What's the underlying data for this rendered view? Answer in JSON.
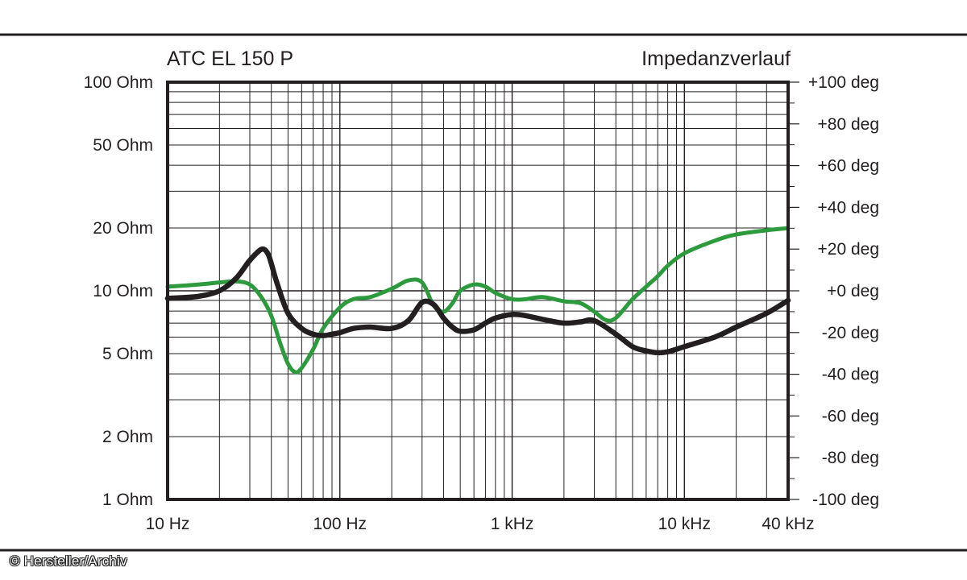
{
  "credit": "© Hersteller/Archiv",
  "colors": {
    "impedance": "#231f20",
    "phase": "#2e9a3e",
    "grid": "#000000",
    "background": "#ffffff"
  },
  "chart_data": {
    "type": "line",
    "title": "ATC EL 150 P",
    "subtitle": "Impedanzverlauf",
    "x_scale": "log",
    "xlim": [
      10,
      40000
    ],
    "x_ticks": [
      {
        "value": 10,
        "label": "10 Hz"
      },
      {
        "value": 100,
        "label": "100 Hz"
      },
      {
        "value": 1000,
        "label": "1 kHz"
      },
      {
        "value": 10000,
        "label": "10 kHz"
      },
      {
        "value": 40000,
        "label": "40 kHz"
      }
    ],
    "y_left": {
      "scale": "log",
      "range": [
        1,
        100
      ],
      "ticks": [
        {
          "value": 100,
          "label": "100 Ohm"
        },
        {
          "value": 50,
          "label": "50 Ohm"
        },
        {
          "value": 20,
          "label": "20 Ohm"
        },
        {
          "value": 10,
          "label": "10 Ohm"
        },
        {
          "value": 5,
          "label": "5 Ohm"
        },
        {
          "value": 2,
          "label": "2 Ohm"
        },
        {
          "value": 1,
          "label": "1 Ohm"
        }
      ]
    },
    "y_right": {
      "scale": "linear",
      "range": [
        -100,
        100
      ],
      "ticks": [
        {
          "value": 100,
          "label": "+100 deg"
        },
        {
          "value": 80,
          "label": "+80 deg"
        },
        {
          "value": 60,
          "label": "+60 deg"
        },
        {
          "value": 40,
          "label": "+40 deg"
        },
        {
          "value": 20,
          "label": "+20 deg"
        },
        {
          "value": 0,
          "label": "+0 deg"
        },
        {
          "value": -20,
          "label": "-20 deg"
        },
        {
          "value": -40,
          "label": "-40 deg"
        },
        {
          "value": -60,
          "label": "-60 deg"
        },
        {
          "value": -80,
          "label": "-80 deg"
        },
        {
          "value": -100,
          "label": "-100 deg"
        }
      ]
    },
    "grid": true,
    "series": [
      {
        "key": "impedance",
        "axis": "left",
        "color": "#231f20",
        "x": [
          10,
          15,
          20,
          25,
          30,
          35,
          38,
          40,
          43,
          50,
          60,
          70,
          80,
          90,
          100,
          120,
          150,
          200,
          250,
          300,
          350,
          400,
          450,
          500,
          600,
          700,
          800,
          1000,
          1200,
          1500,
          2000,
          2500,
          3000,
          4000,
          5000,
          6000,
          7000,
          8000,
          10000,
          15000,
          20000,
          30000,
          40000
        ],
        "y": [
          9.2,
          9.4,
          10.0,
          11.5,
          14.0,
          15.8,
          15.2,
          13.5,
          11.0,
          7.8,
          6.6,
          6.2,
          6.1,
          6.2,
          6.3,
          6.6,
          6.7,
          6.6,
          7.2,
          8.8,
          8.6,
          7.4,
          6.7,
          6.4,
          6.5,
          7.0,
          7.4,
          7.7,
          7.6,
          7.3,
          7.0,
          7.1,
          7.2,
          6.2,
          5.4,
          5.15,
          5.05,
          5.1,
          5.4,
          6.0,
          6.7,
          7.8,
          9.0
        ]
      },
      {
        "key": "phase",
        "axis": "right",
        "color": "#2e9a3e",
        "x": [
          10,
          15,
          20,
          25,
          30,
          35,
          40,
          45,
          50,
          55,
          60,
          70,
          80,
          100,
          120,
          150,
          200,
          250,
          300,
          350,
          400,
          450,
          500,
          600,
          700,
          800,
          1000,
          1200,
          1500,
          2000,
          2500,
          3000,
          3500,
          4000,
          5000,
          6000,
          7000,
          8000,
          10000,
          15000,
          20000,
          30000,
          40000
        ],
        "y": [
          2,
          3,
          4,
          4.5,
          3,
          -3,
          -12,
          -25,
          -35,
          -39,
          -37,
          -28,
          -18,
          -8,
          -4,
          -3,
          1,
          5,
          4,
          -7,
          -10,
          -6,
          0,
          3,
          2,
          -1,
          -4,
          -4,
          -3,
          -5,
          -6,
          -10,
          -14,
          -13,
          -4,
          2,
          7,
          12,
          18,
          24,
          27,
          29,
          30
        ]
      }
    ]
  }
}
